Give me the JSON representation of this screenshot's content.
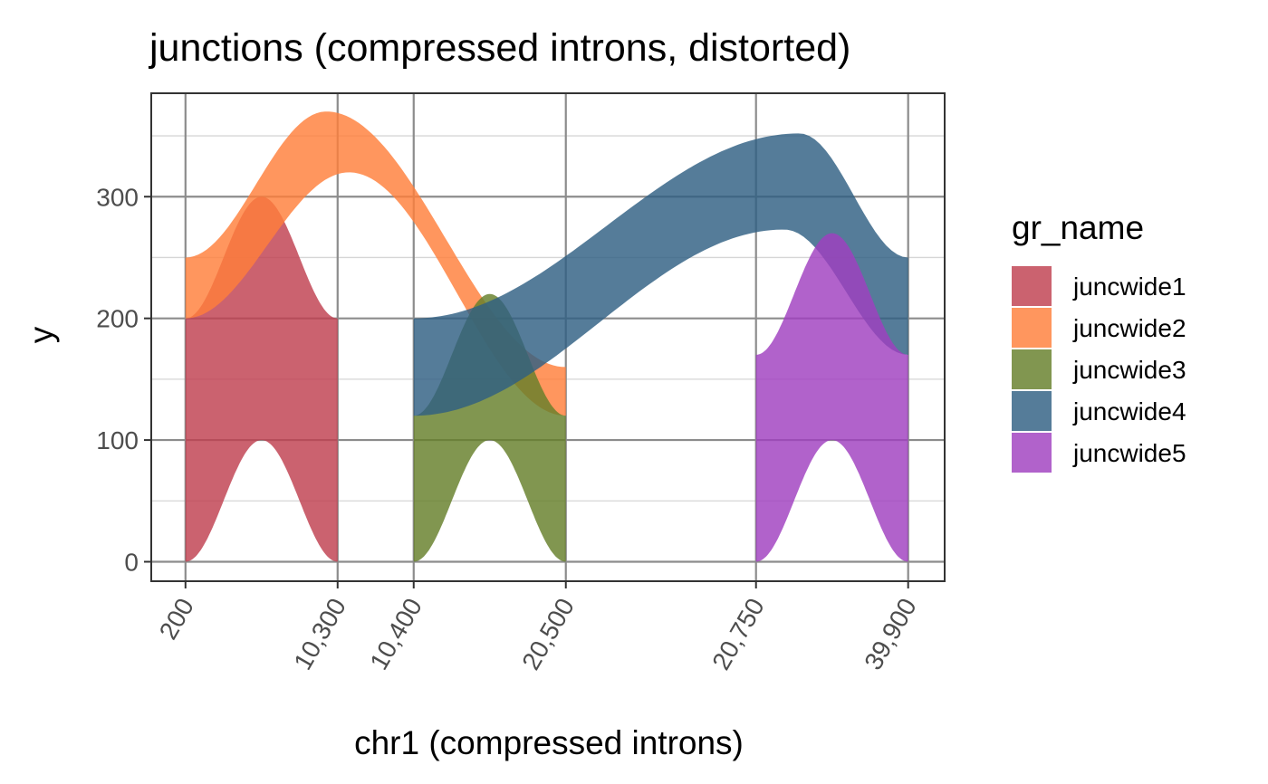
{
  "chart_data": {
    "type": "area",
    "title": "junctions (compressed introns, distorted)",
    "xlabel": "chr1 (compressed introns)",
    "ylabel": "y",
    "x_ticks": [
      {
        "label": "200",
        "pos": 0
      },
      {
        "label": "10,300",
        "pos": 1
      },
      {
        "label": "10,400",
        "pos": 1.5
      },
      {
        "label": "20,500",
        "pos": 2.5
      },
      {
        "label": "20,750",
        "pos": 3.75
      },
      {
        "label": "39,900",
        "pos": 4.75
      }
    ],
    "xlim": [
      -0.225,
      4.99
    ],
    "y_ticks": [
      0,
      100,
      200,
      300
    ],
    "ylim": [
      -16,
      385
    ],
    "grid": true,
    "legend": {
      "title": "gr_name",
      "placement": "right"
    },
    "series": [
      {
        "name": "juncwide1",
        "color": "#C0404F",
        "x_start": 0,
        "x_end": 1,
        "top": {
          "y0": 200,
          "peak": 300,
          "y1": 200,
          "peak_at": 0.5
        },
        "bottom": {
          "y0": 0,
          "peak": 100,
          "y1": 0,
          "peak_at": 0.5
        }
      },
      {
        "name": "juncwide2",
        "color": "#FF7F3A",
        "x_start": 0,
        "x_end": 2.5,
        "top": {
          "y0": 250,
          "peak": 370,
          "y1": 160,
          "peak_at": 0.37
        },
        "bottom": {
          "y0": 200,
          "peak": 320,
          "y1": 120,
          "peak_at": 0.43
        }
      },
      {
        "name": "juncwide3",
        "color": "#657F2A",
        "x_start": 1.5,
        "x_end": 2.5,
        "top": {
          "y0": 120,
          "peak": 220,
          "y1": 120,
          "peak_at": 0.5
        },
        "bottom": {
          "y0": 0,
          "peak": 100,
          "y1": 0,
          "peak_at": 0.5
        }
      },
      {
        "name": "juncwide4",
        "color": "#2F5F82",
        "x_start": 1.5,
        "x_end": 4.75,
        "top": {
          "y0": 200,
          "peak": 352,
          "y1": 250,
          "peak_at": 0.78
        },
        "bottom": {
          "y0": 120,
          "peak": 273,
          "y1": 170,
          "peak_at": 0.75
        }
      },
      {
        "name": "juncwide5",
        "color": "#A040C0",
        "x_start": 3.75,
        "x_end": 4.75,
        "top": {
          "y0": 170,
          "peak": 270,
          "y1": 170,
          "peak_at": 0.5
        },
        "bottom": {
          "y0": 0,
          "peak": 100,
          "y1": 0,
          "peak_at": 0.5
        }
      }
    ]
  }
}
